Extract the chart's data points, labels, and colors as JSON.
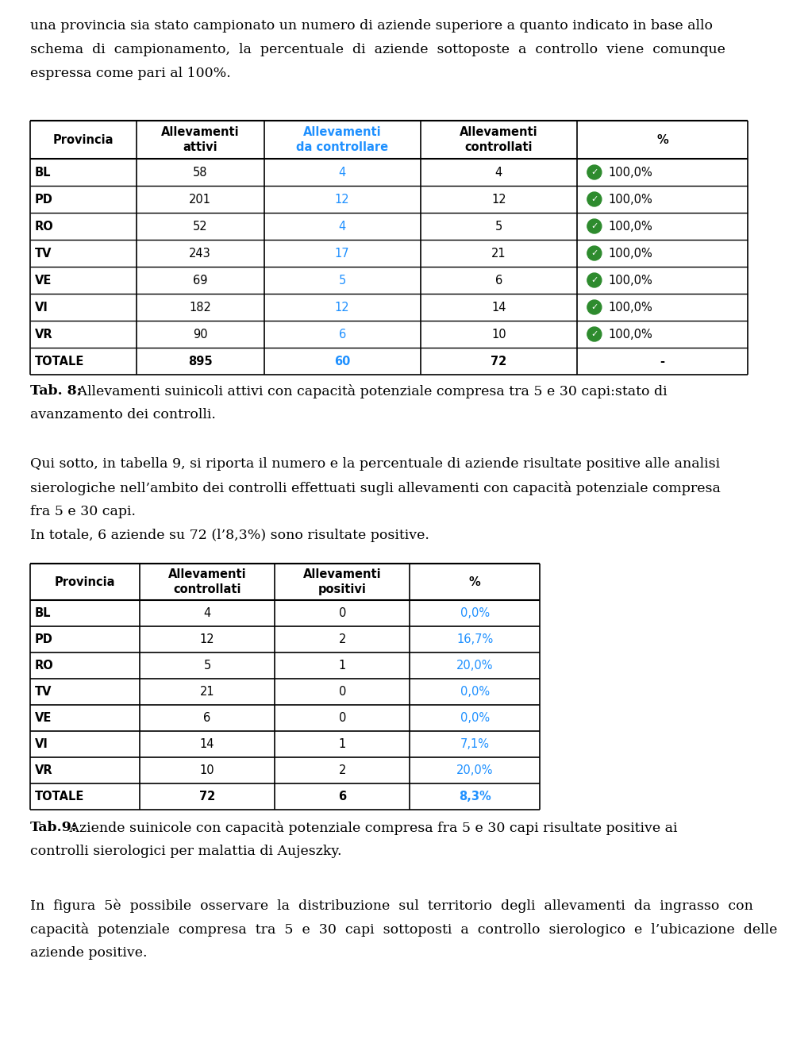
{
  "text_intro": [
    "una provincia sia stato campionato un numero di aziende superiore a quanto indicato in base allo",
    "schema  di  campionamento,  la  percentuale  di  aziende  sottoposte  a  controllo  viene  comunque",
    "espressa come pari al 100%."
  ],
  "table8_headers": [
    "Provincia",
    "Allevamenti\nattivi",
    "Allevamenti\nda controllare",
    "Allevamenti\ncontrollati",
    "%"
  ],
  "table8_header_colors": [
    "black",
    "black",
    "#1e90ff",
    "black",
    "black"
  ],
  "table8_rows": [
    [
      "BL",
      "58",
      "4",
      "4",
      "100,0%"
    ],
    [
      "PD",
      "201",
      "12",
      "12",
      "100,0%"
    ],
    [
      "RO",
      "52",
      "4",
      "5",
      "100,0%"
    ],
    [
      "TV",
      "243",
      "17",
      "21",
      "100,0%"
    ],
    [
      "VE",
      "69",
      "5",
      "6",
      "100,0%"
    ],
    [
      "VI",
      "182",
      "12",
      "14",
      "100,0%"
    ],
    [
      "VR",
      "90",
      "6",
      "10",
      "100,0%"
    ],
    [
      "TOTALE",
      "895",
      "60",
      "72",
      "-"
    ]
  ],
  "table8_col2_color": "#1e90ff",
  "table8_caption_bold": "Tab. 8:",
  "table8_caption_rest": " Allevamenti suinicoli attivi con capacità potenziale compresa tra 5 e 30 capi:stato di",
  "table8_caption_line2": "avanzamento dei controlli.",
  "text_middle": [
    "Qui sotto, in tabella 9, si riporta il numero e la percentuale di aziende risultate positive alle analisi",
    "sierologiche nell’ambito dei controlli effettuati sugli allevamenti con capacità potenziale compresa",
    "fra 5 e 30 capi.",
    "In totale, 6 aziende su 72 (l’8,3%) sono risultate positive."
  ],
  "table9_headers": [
    "Provincia",
    "Allevamenti\ncontrollati",
    "Allevamenti\npositivi",
    "%"
  ],
  "table9_rows": [
    [
      "BL",
      "4",
      "0",
      "0,0%"
    ],
    [
      "PD",
      "12",
      "2",
      "16,7%"
    ],
    [
      "RO",
      "5",
      "1",
      "20,0%"
    ],
    [
      "TV",
      "21",
      "0",
      "0,0%"
    ],
    [
      "VE",
      "6",
      "0",
      "0,0%"
    ],
    [
      "VI",
      "14",
      "1",
      "7,1%"
    ],
    [
      "VR",
      "10",
      "2",
      "20,0%"
    ],
    [
      "TOTALE",
      "72",
      "6",
      "8,3%"
    ]
  ],
  "table9_pct_color": "#1e90ff",
  "table9_caption_bold": "Tab.9:",
  "table9_caption_rest": " Aziende suinicole con capacità potenziale compresa fra 5 e 30 capi risultate positive ai",
  "table9_caption_line2": "controlli sierologici per malattia di Aujeszky.",
  "text_final": [
    "In  figura  5è  possibile  osservare  la  distribuzione  sul  territorio  degli  allevamenti  da  ingrasso  con",
    "capacità  potenziale  compresa  tra  5  e  30  capi  sottoposti  a  controllo  sierologico  e  l’ubicazione  delle",
    "aziende positive."
  ],
  "bg_color": "#ffffff",
  "text_color": "#000000",
  "green_color": "#2e8b2e"
}
